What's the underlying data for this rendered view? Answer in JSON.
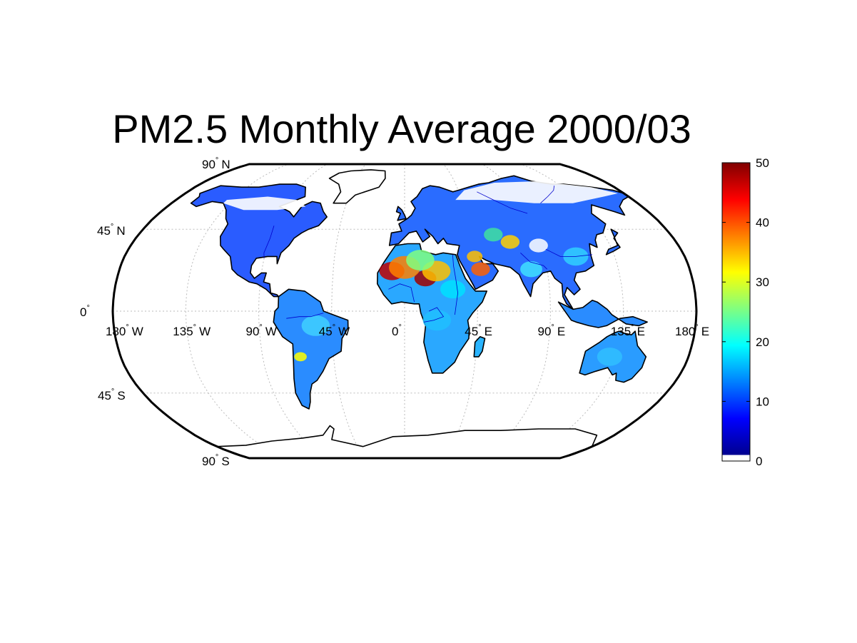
{
  "title": "PM2.5 Monthly Average 2000/03",
  "map": {
    "projection": "robinson",
    "grid": true,
    "lat_labels": [
      {
        "deg": "90",
        "hem": "N",
        "lat": 90
      },
      {
        "deg": "45",
        "hem": "N",
        "lat": 45
      },
      {
        "deg": "0",
        "hem": "",
        "lat": 0
      },
      {
        "deg": "45",
        "hem": "S",
        "lat": -45
      },
      {
        "deg": "90",
        "hem": "S",
        "lat": -90
      }
    ],
    "lon_labels": [
      {
        "deg": "180",
        "hem": "W",
        "lon": -180
      },
      {
        "deg": "135",
        "hem": "W",
        "lon": -135
      },
      {
        "deg": "90",
        "hem": "W",
        "lon": -90
      },
      {
        "deg": "45",
        "hem": "W",
        "lon": -45
      },
      {
        "deg": "0",
        "hem": "",
        "lon": 0
      },
      {
        "deg": "45",
        "hem": "E",
        "lon": 45
      },
      {
        "deg": "90",
        "hem": "E",
        "lon": 90
      },
      {
        "deg": "135",
        "hem": "E",
        "lon": 135
      },
      {
        "deg": "180",
        "hem": "E",
        "lon": 180
      }
    ]
  },
  "colorbar": {
    "min": 0,
    "max": 50,
    "ticks": [
      "0",
      "10",
      "20",
      "30",
      "40",
      "50"
    ],
    "colormap": "jet",
    "stops": [
      "#00008f",
      "#0000ff",
      "#0080ff",
      "#00ffff",
      "#80ff80",
      "#ffff00",
      "#ff8000",
      "#ff0000",
      "#800000"
    ]
  },
  "colors": {
    "coastline": "#000000",
    "rivers": "#0000cc",
    "grid": "#bbbbbb",
    "no_data": "#ffffff"
  }
}
